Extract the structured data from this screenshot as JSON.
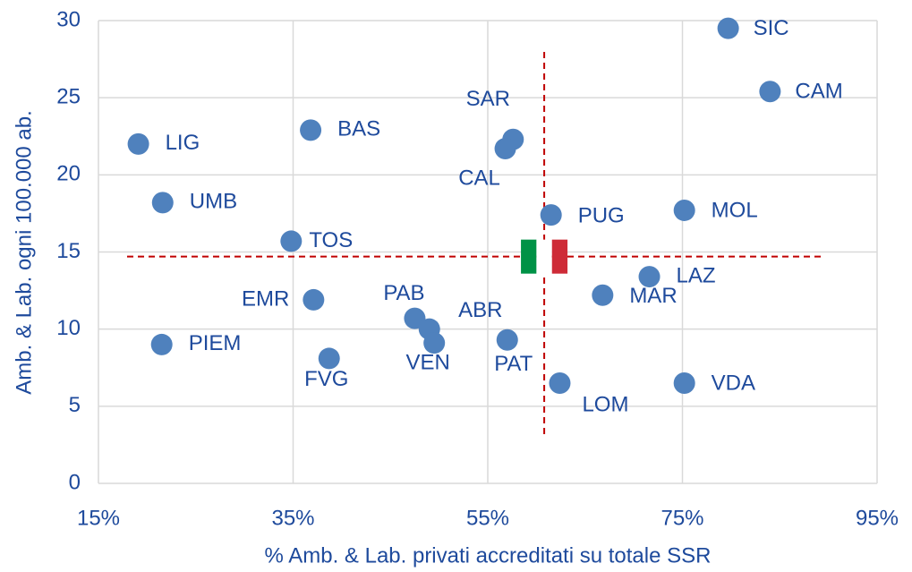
{
  "chart_data": {
    "type": "scatter",
    "xlabel": "% Amb. & Lab. privati accreditati su totale SSR",
    "ylabel": "Amb. & Lab. ogni 100.000 ab.",
    "xlim": [
      15,
      95
    ],
    "xticks": [
      {
        "value": 15,
        "label": "15%"
      },
      {
        "value": 35,
        "label": "35%"
      },
      {
        "value": 55,
        "label": "55%"
      },
      {
        "value": 75,
        "label": "75%"
      },
      {
        "value": 95,
        "label": "95%"
      }
    ],
    "ylim": [
      0,
      30
    ],
    "yticks": [
      0,
      5,
      10,
      15,
      20,
      25,
      30
    ],
    "grid": true,
    "color": "#4f81bd",
    "reference_lines": {
      "x": 60.8,
      "y": 14.7,
      "color": "#c00000"
    },
    "series": [
      {
        "labels": [
          "LIG",
          "UMB",
          "BAS",
          "TOS",
          "EMR",
          "PIEM",
          "FVG",
          "PAB",
          "ABR",
          "VEN",
          "SAR",
          "CAL",
          "PUG",
          "PAT",
          "LOM",
          "MAR",
          "LAZ",
          "MOL",
          "VDA",
          "SIC",
          "CAM"
        ],
        "x": [
          19.1,
          21.6,
          36.8,
          34.8,
          37.1,
          21.5,
          38.7,
          47.5,
          49.0,
          49.5,
          57.6,
          56.8,
          61.5,
          57.0,
          62.4,
          66.8,
          71.6,
          75.2,
          75.2,
          79.7,
          84.0
        ],
        "values": [
          22.0,
          18.2,
          22.9,
          15.7,
          11.9,
          9.0,
          8.1,
          10.7,
          10.0,
          9.1,
          22.3,
          21.7,
          17.4,
          9.3,
          6.5,
          12.2,
          13.4,
          17.7,
          6.5,
          29.5,
          25.4
        ]
      }
    ]
  }
}
